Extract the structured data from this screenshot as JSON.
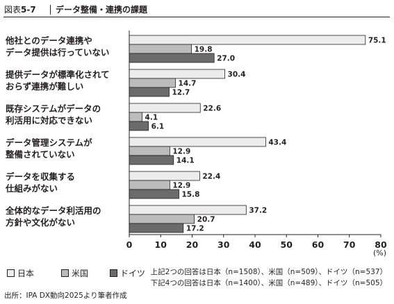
{
  "figure": {
    "number_prefix": "図表",
    "number": "5-7",
    "title": "データ整備・連携の課題"
  },
  "chart_data": {
    "type": "bar",
    "orientation": "horizontal",
    "categories": [
      [
        "他社とのデータ連携や",
        "データ提供は行っていない"
      ],
      [
        "提供データが標準化されて",
        "おらず連携が難しい"
      ],
      [
        "既存システムがデータの",
        "利活用に対応できない"
      ],
      [
        "データ管理システムが",
        "整備されていない"
      ],
      [
        "データを収集する",
        "仕組みがない"
      ],
      [
        "全体的なデータ利活用の",
        "方針や文化がない"
      ]
    ],
    "series": [
      {
        "name": "日本",
        "color": "#ececec",
        "values": [
          75.1,
          30.4,
          22.6,
          43.4,
          22.4,
          37.2
        ]
      },
      {
        "name": "米国",
        "color": "#bcbcbc",
        "values": [
          19.8,
          14.7,
          4.1,
          12.9,
          12.9,
          20.7
        ]
      },
      {
        "name": "ドイツ",
        "color": "#6b6b6b",
        "values": [
          27.0,
          12.7,
          6.1,
          14.1,
          15.8,
          17.2
        ]
      }
    ],
    "xlim": [
      0,
      80
    ],
    "xticks": [
      0,
      10,
      20,
      30,
      40,
      50,
      60,
      70,
      80
    ],
    "xunit": "(%)",
    "grid": false,
    "legend": "bottom-left"
  },
  "notes": {
    "line1": "上記2つの回答は日本（n=1508）、米国（n=509）、ドイツ（n=537）",
    "line2": "下記4つの回答は日本（n=1400）、米国（n=489）、ドイツ（n=505）"
  },
  "source": "出所：IPA DX動向2025より筆者作成"
}
